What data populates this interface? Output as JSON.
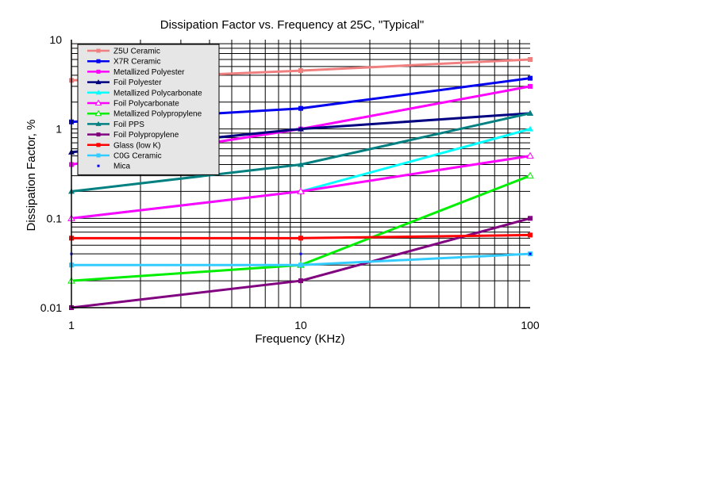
{
  "chart_data": {
    "type": "line",
    "title": "Dissipation Factor vs. Frequency at 25C, \"Typical\"",
    "xlabel": "Frequency (KHz)",
    "ylabel": "Dissipation Factor, %",
    "xscale": "log",
    "yscale": "log",
    "xlim": [
      1,
      100
    ],
    "ylim": [
      0.01,
      10
    ],
    "x_ticks": [
      1,
      10,
      100
    ],
    "x_tick_labels": [
      "1",
      "10",
      "100"
    ],
    "y_ticks": [
      0.01,
      0.1,
      1,
      10
    ],
    "y_tick_labels": [
      "0.01",
      "0.1",
      "1",
      "10"
    ],
    "grid": true,
    "legend_position": "top-left",
    "series": [
      {
        "name": "Z5U Ceramic",
        "color": "#f08080",
        "marker": "square",
        "x": [
          1,
          10,
          100
        ],
        "y": [
          3.5,
          4.5,
          6.0
        ]
      },
      {
        "name": "X7R Ceramic",
        "color": "#0000ee",
        "marker": "square",
        "x": [
          1,
          10,
          100
        ],
        "y": [
          1.2,
          1.7,
          3.7
        ]
      },
      {
        "name": "Metallized Polyester",
        "color": "#ff00ff",
        "marker": "square",
        "x": [
          1,
          10,
          100
        ],
        "y": [
          0.4,
          1.0,
          3.0
        ]
      },
      {
        "name": "Foil Polyester",
        "color": "#000080",
        "marker": "triangle",
        "x": [
          1,
          10,
          100
        ],
        "y": [
          0.55,
          1.0,
          1.5
        ]
      },
      {
        "name": "Metallized Polycarbonate",
        "color": "#00ffff",
        "marker": "triangle",
        "x": [
          1,
          10,
          100
        ],
        "y": [
          0.1,
          0.2,
          1.0
        ]
      },
      {
        "name": "Foil Polycarbonate",
        "color": "#ff00ff",
        "marker": "triangle-open",
        "x": [
          1,
          10,
          100
        ],
        "y": [
          0.1,
          0.2,
          0.5
        ]
      },
      {
        "name": "Metallized Polypropylene",
        "color": "#00ee00",
        "marker": "triangle-open",
        "x": [
          1,
          10,
          100
        ],
        "y": [
          0.02,
          0.03,
          0.3
        ]
      },
      {
        "name": "Foil PPS",
        "color": "#008080",
        "marker": "triangle",
        "x": [
          1,
          10,
          100
        ],
        "y": [
          0.2,
          0.4,
          1.5
        ]
      },
      {
        "name": "Foil Polypropylene",
        "color": "#800080",
        "marker": "square",
        "x": [
          1,
          10,
          100
        ],
        "y": [
          0.01,
          0.02,
          0.1
        ]
      },
      {
        "name": "Glass (low K)",
        "color": "#ff0000",
        "marker": "square",
        "x": [
          1,
          10,
          100
        ],
        "y": [
          0.06,
          0.06,
          0.065
        ]
      },
      {
        "name": "C0G Ceramic",
        "color": "#33ccff",
        "marker": "square",
        "x": [
          1,
          10,
          100
        ],
        "y": [
          0.03,
          0.03,
          0.04
        ]
      },
      {
        "name": "Mica",
        "color": "#0000ff",
        "marker": "dot",
        "x": [
          1,
          10,
          100
        ],
        "y": [
          0.04,
          0.04,
          0.04
        ],
        "line": false
      }
    ]
  }
}
